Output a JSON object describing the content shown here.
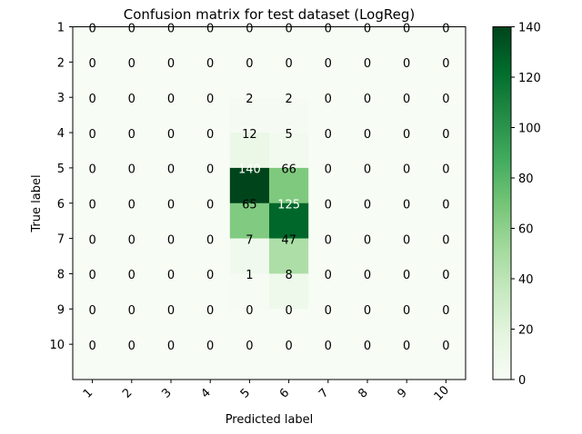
{
  "chart_data": {
    "type": "heatmap",
    "title": "Confusion matrix for test dataset (LogReg)",
    "xlabel": "Predicted label",
    "ylabel": "True label",
    "x_ticks": [
      "1",
      "2",
      "3",
      "4",
      "5",
      "6",
      "7",
      "8",
      "9",
      "10"
    ],
    "y_ticks": [
      "1",
      "2",
      "3",
      "4",
      "5",
      "6",
      "7",
      "8",
      "9",
      "10"
    ],
    "values": [
      [
        0,
        0,
        0,
        0,
        0,
        0,
        0,
        0,
        0,
        0
      ],
      [
        0,
        0,
        0,
        0,
        0,
        0,
        0,
        0,
        0,
        0
      ],
      [
        0,
        0,
        0,
        0,
        2,
        2,
        0,
        0,
        0,
        0
      ],
      [
        0,
        0,
        0,
        0,
        12,
        5,
        0,
        0,
        0,
        0
      ],
      [
        0,
        0,
        0,
        0,
        140,
        66,
        0,
        0,
        0,
        0
      ],
      [
        0,
        0,
        0,
        0,
        65,
        125,
        0,
        0,
        0,
        0
      ],
      [
        0,
        0,
        0,
        0,
        7,
        47,
        0,
        0,
        0,
        0
      ],
      [
        0,
        0,
        0,
        0,
        1,
        8,
        0,
        0,
        0,
        0
      ],
      [
        0,
        0,
        0,
        0,
        0,
        0,
        0,
        0,
        0,
        0
      ],
      [
        0,
        0,
        0,
        0,
        0,
        0,
        0,
        0,
        0,
        0
      ]
    ],
    "colormap": "Greens",
    "color_range": [
      0,
      140
    ],
    "colorbar_ticks": [
      "0",
      "20",
      "40",
      "60",
      "80",
      "100",
      "120",
      "140"
    ],
    "colorbar_values": [
      0,
      20,
      40,
      60,
      80,
      100,
      120,
      140
    ],
    "annotation_threshold": 70,
    "grid": false
  }
}
